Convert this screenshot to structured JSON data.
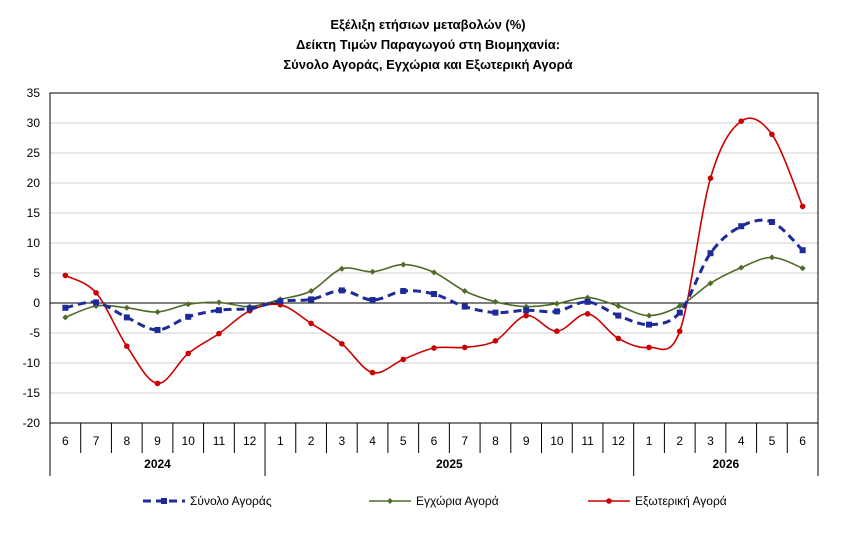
{
  "chart_data": {
    "type": "line",
    "title_lines": [
      "Εξέλιξη ετήσιων μεταβολών (%)",
      "Δείκτη Τιμών Παραγωγού στη Βιομηχανία:",
      "Σύνολο Αγοράς, Εγχώρια και Εξωτερική Αγορά"
    ],
    "categories": [
      "6",
      "7",
      "8",
      "9",
      "10",
      "11",
      "12",
      "1",
      "2",
      "3",
      "4",
      "5",
      "6",
      "7",
      "8",
      "9",
      "10",
      "11",
      "12",
      "1",
      "2",
      "3",
      "4",
      "5",
      "6"
    ],
    "years": [
      {
        "label": "2024",
        "start": 0,
        "end": 6
      },
      {
        "label": "2025",
        "start": 7,
        "end": 18
      },
      {
        "label": "2026",
        "start": 19,
        "end": 24
      }
    ],
    "ylim": [
      -20,
      35
    ],
    "yticks": [
      35,
      30,
      25,
      20,
      15,
      10,
      5,
      0,
      -5,
      -10,
      -15,
      -20
    ],
    "grid": true,
    "legend_position": "bottom",
    "series": [
      {
        "name": "Σύνολο Αγοράς",
        "color": "#1f2a99",
        "style": "dashed",
        "marker": "square",
        "values": [
          -0.8,
          0.1,
          -2.4,
          -4.5,
          -2.3,
          -1.2,
          -0.9,
          0.3,
          0.6,
          2.1,
          0.5,
          2.0,
          1.5,
          -0.6,
          -1.6,
          -1.2,
          -1.4,
          0.2,
          -2.1,
          -3.6,
          -1.6,
          8.3,
          12.8,
          13.5,
          8.8
        ]
      },
      {
        "name": "Εγχώρια Αγορά",
        "color": "#4e6b2a",
        "style": "solid",
        "marker": "diamond",
        "values": [
          -2.4,
          -0.5,
          -0.8,
          -1.5,
          -0.2,
          0.1,
          -0.6,
          0.6,
          2.0,
          5.7,
          5.2,
          6.4,
          5.1,
          2.0,
          0.2,
          -0.6,
          -0.1,
          0.9,
          -0.5,
          -2.1,
          -0.5,
          3.3,
          5.9,
          7.6,
          5.8
        ]
      },
      {
        "name": "Εξωτερική Αγορά",
        "color": "#cc0000",
        "style": "solid",
        "marker": "circle",
        "values": [
          4.6,
          1.7,
          -7.2,
          -13.4,
          -8.4,
          -5.1,
          -1.3,
          -0.3,
          -3.4,
          -6.8,
          -11.6,
          -9.4,
          -7.5,
          -7.4,
          -6.3,
          -2.1,
          -4.7,
          -1.8,
          -5.9,
          -7.4,
          -4.7,
          20.8,
          30.3,
          28.1,
          16.1
        ]
      }
    ]
  }
}
